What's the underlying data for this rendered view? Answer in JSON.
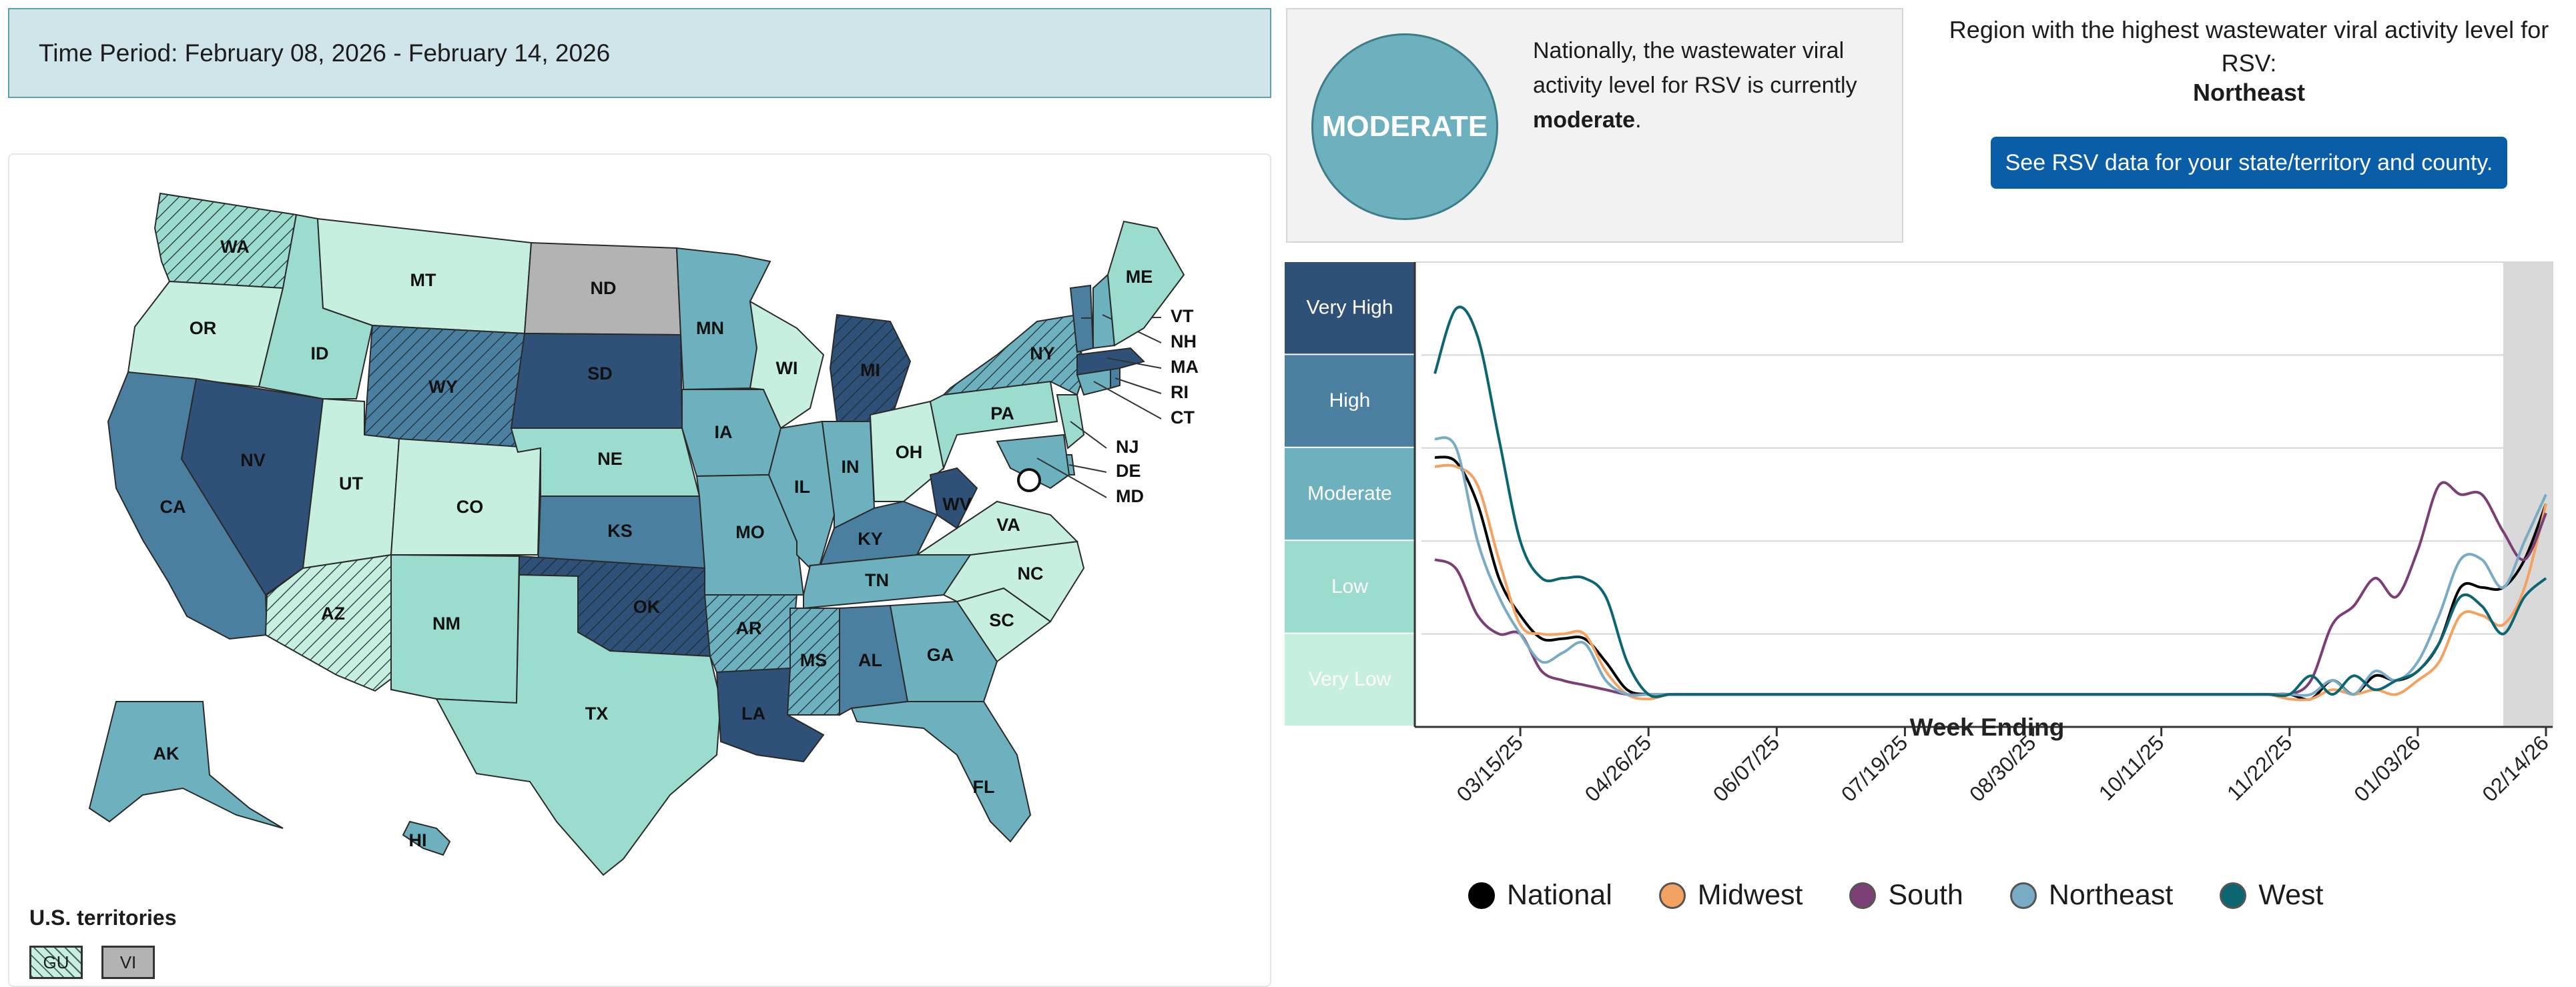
{
  "header": {
    "time_period": "Time Period: February 08, 2026 - February 14, 2026"
  },
  "national_level": {
    "badge": "MODERATE",
    "text_before": "Nationally, the wastewater viral activity level for RSV is currently",
    "level_word": "moderate",
    "text_after": "."
  },
  "region": {
    "title": "Region with the highest wastewater viral activity level for RSV:",
    "name": "Northeast",
    "button_label": "See RSV data for your state/territory and county."
  },
  "colors": {
    "very_low": "#c6efdf",
    "low": "#9cdccf",
    "moderate": "#6cb1bd",
    "high": "#4a7fa0",
    "very_high": "#2f5077",
    "no_data": "#b3b3b3",
    "national": "#000000",
    "midwest": "#f4a261",
    "south": "#7b3f75",
    "northeast": "#79abc4",
    "west": "#0b6672"
  },
  "map": {
    "states": [
      {
        "abbr": "WA",
        "level": "low",
        "hatched": true
      },
      {
        "abbr": "OR",
        "level": "very_low"
      },
      {
        "abbr": "CA",
        "level": "high"
      },
      {
        "abbr": "NV",
        "level": "very_high"
      },
      {
        "abbr": "ID",
        "level": "low"
      },
      {
        "abbr": "MT",
        "level": "very_low"
      },
      {
        "abbr": "WY",
        "level": "high",
        "hatched": true
      },
      {
        "abbr": "UT",
        "level": "very_low"
      },
      {
        "abbr": "CO",
        "level": "very_low"
      },
      {
        "abbr": "AZ",
        "level": "very_low",
        "hatched": true
      },
      {
        "abbr": "NM",
        "level": "low"
      },
      {
        "abbr": "ND",
        "level": "no_data"
      },
      {
        "abbr": "SD",
        "level": "very_high"
      },
      {
        "abbr": "NE",
        "level": "low"
      },
      {
        "abbr": "KS",
        "level": "high"
      },
      {
        "abbr": "OK",
        "level": "very_high",
        "hatched": true
      },
      {
        "abbr": "TX",
        "level": "low"
      },
      {
        "abbr": "MN",
        "level": "moderate"
      },
      {
        "abbr": "IA",
        "level": "moderate"
      },
      {
        "abbr": "MO",
        "level": "moderate"
      },
      {
        "abbr": "AR",
        "level": "moderate",
        "hatched": true
      },
      {
        "abbr": "LA",
        "level": "very_high"
      },
      {
        "abbr": "WI",
        "level": "very_low"
      },
      {
        "abbr": "IL",
        "level": "moderate"
      },
      {
        "abbr": "MI",
        "level": "very_high",
        "hatched": true
      },
      {
        "abbr": "IN",
        "level": "moderate"
      },
      {
        "abbr": "OH",
        "level": "very_low"
      },
      {
        "abbr": "KY",
        "level": "high"
      },
      {
        "abbr": "TN",
        "level": "moderate"
      },
      {
        "abbr": "MS",
        "level": "moderate",
        "hatched": true
      },
      {
        "abbr": "AL",
        "level": "high"
      },
      {
        "abbr": "GA",
        "level": "moderate"
      },
      {
        "abbr": "FL",
        "level": "moderate"
      },
      {
        "abbr": "SC",
        "level": "very_low"
      },
      {
        "abbr": "NC",
        "level": "very_low"
      },
      {
        "abbr": "VA",
        "level": "very_low"
      },
      {
        "abbr": "WV",
        "level": "very_high"
      },
      {
        "abbr": "PA",
        "level": "low"
      },
      {
        "abbr": "NY",
        "level": "moderate",
        "hatched": true
      },
      {
        "abbr": "NJ",
        "level": "low"
      },
      {
        "abbr": "DE",
        "level": "moderate"
      },
      {
        "abbr": "MD",
        "level": "moderate"
      },
      {
        "abbr": "CT",
        "level": "moderate"
      },
      {
        "abbr": "RI",
        "level": "high"
      },
      {
        "abbr": "MA",
        "level": "very_high"
      },
      {
        "abbr": "VT",
        "level": "high"
      },
      {
        "abbr": "NH",
        "level": "moderate"
      },
      {
        "abbr": "ME",
        "level": "low"
      },
      {
        "abbr": "AK",
        "level": "moderate"
      },
      {
        "abbr": "HI",
        "level": "moderate"
      }
    ],
    "territories_title": "U.S. territories",
    "territories": [
      {
        "abbr": "GU",
        "level": "very_low",
        "hatched": true
      },
      {
        "abbr": "VI",
        "level": "no_data"
      }
    ]
  },
  "chart_data": {
    "type": "line",
    "xlabel": "Week Ending",
    "x_ticks": [
      "03/15/25",
      "04/26/25",
      "06/07/25",
      "07/19/25",
      "08/30/25",
      "10/11/25",
      "11/22/25",
      "01/03/26",
      "02/14/26"
    ],
    "y_bands": [
      "Very High",
      "High",
      "Moderate",
      "Low",
      "Very Low"
    ],
    "y_range": [
      0,
      5
    ],
    "x": [
      "02/15/25",
      "02/22/25",
      "03/01/25",
      "03/08/25",
      "03/15/25",
      "03/22/25",
      "03/29/25",
      "04/05/25",
      "04/12/25",
      "04/19/25",
      "04/26/25",
      "05/03/25",
      "05/10/25",
      "05/17/25",
      "05/24/25",
      "05/31/25",
      "06/07/25",
      "06/14/25",
      "06/21/25",
      "06/28/25",
      "07/05/25",
      "07/12/25",
      "07/19/25",
      "07/26/25",
      "08/02/25",
      "08/09/25",
      "08/16/25",
      "08/23/25",
      "08/30/25",
      "09/06/25",
      "09/13/25",
      "09/20/25",
      "09/27/25",
      "10/04/25",
      "10/11/25",
      "10/18/25",
      "10/25/25",
      "11/01/25",
      "11/08/25",
      "11/15/25",
      "11/22/25",
      "11/29/25",
      "12/06/25",
      "12/13/25",
      "12/20/25",
      "12/27/25",
      "01/03/26",
      "01/10/26",
      "01/17/26",
      "01/24/26",
      "01/31/26",
      "02/07/26",
      "02/14/26"
    ],
    "series": [
      {
        "name": "National",
        "values": [
          2.9,
          2.85,
          2.4,
          1.6,
          1.2,
          0.95,
          0.95,
          0.95,
          0.7,
          0.4,
          0.35,
          0.35,
          0.35,
          0.35,
          0.35,
          0.35,
          0.35,
          0.35,
          0.35,
          0.35,
          0.35,
          0.35,
          0.35,
          0.35,
          0.35,
          0.35,
          0.35,
          0.35,
          0.35,
          0.35,
          0.35,
          0.35,
          0.35,
          0.35,
          0.35,
          0.35,
          0.35,
          0.35,
          0.35,
          0.35,
          0.35,
          0.3,
          0.5,
          0.35,
          0.55,
          0.5,
          0.6,
          0.9,
          1.5,
          1.5,
          1.5,
          1.8,
          2.4
        ]
      },
      {
        "name": "Midwest",
        "values": [
          2.8,
          2.8,
          2.6,
          1.8,
          1.1,
          1.0,
          1.0,
          1.0,
          0.6,
          0.35,
          0.3,
          0.35,
          0.35,
          0.35,
          0.35,
          0.35,
          0.35,
          0.35,
          0.35,
          0.35,
          0.35,
          0.35,
          0.35,
          0.35,
          0.35,
          0.35,
          0.35,
          0.35,
          0.35,
          0.35,
          0.35,
          0.35,
          0.35,
          0.35,
          0.35,
          0.35,
          0.35,
          0.35,
          0.35,
          0.35,
          0.3,
          0.3,
          0.4,
          0.35,
          0.4,
          0.35,
          0.5,
          0.7,
          1.2,
          1.2,
          1.1,
          1.5,
          2.4
        ]
      },
      {
        "name": "South",
        "values": [
          1.8,
          1.7,
          1.2,
          1.0,
          1.0,
          0.6,
          0.5,
          0.45,
          0.4,
          0.35,
          0.35,
          0.35,
          0.35,
          0.35,
          0.35,
          0.35,
          0.35,
          0.35,
          0.35,
          0.35,
          0.35,
          0.35,
          0.35,
          0.35,
          0.35,
          0.35,
          0.35,
          0.35,
          0.35,
          0.35,
          0.35,
          0.35,
          0.35,
          0.35,
          0.35,
          0.35,
          0.35,
          0.35,
          0.35,
          0.35,
          0.35,
          0.5,
          1.1,
          1.3,
          1.6,
          1.4,
          1.9,
          2.6,
          2.5,
          2.5,
          2.1,
          1.8,
          2.3
        ]
      },
      {
        "name": "Northeast",
        "values": [
          3.1,
          3.0,
          2.0,
          1.4,
          1.0,
          0.7,
          0.8,
          0.9,
          0.5,
          0.35,
          0.35,
          0.35,
          0.35,
          0.35,
          0.35,
          0.35,
          0.35,
          0.35,
          0.35,
          0.35,
          0.35,
          0.35,
          0.35,
          0.35,
          0.35,
          0.35,
          0.35,
          0.35,
          0.35,
          0.35,
          0.35,
          0.35,
          0.35,
          0.35,
          0.35,
          0.35,
          0.35,
          0.35,
          0.35,
          0.35,
          0.35,
          0.35,
          0.5,
          0.35,
          0.6,
          0.5,
          0.7,
          1.2,
          1.8,
          1.8,
          1.5,
          2.0,
          2.5
        ]
      },
      {
        "name": "West",
        "values": [
          3.8,
          4.5,
          4.2,
          3.1,
          2.0,
          1.6,
          1.6,
          1.6,
          1.4,
          0.7,
          0.35,
          0.35,
          0.35,
          0.35,
          0.35,
          0.35,
          0.35,
          0.35,
          0.35,
          0.35,
          0.35,
          0.35,
          0.35,
          0.35,
          0.35,
          0.35,
          0.35,
          0.35,
          0.35,
          0.35,
          0.35,
          0.35,
          0.35,
          0.35,
          0.35,
          0.35,
          0.35,
          0.35,
          0.35,
          0.35,
          0.35,
          0.55,
          0.35,
          0.55,
          0.4,
          0.5,
          0.6,
          0.9,
          1.4,
          1.3,
          1.0,
          1.4,
          1.6
        ]
      }
    ],
    "shaded_recent_period": true
  }
}
